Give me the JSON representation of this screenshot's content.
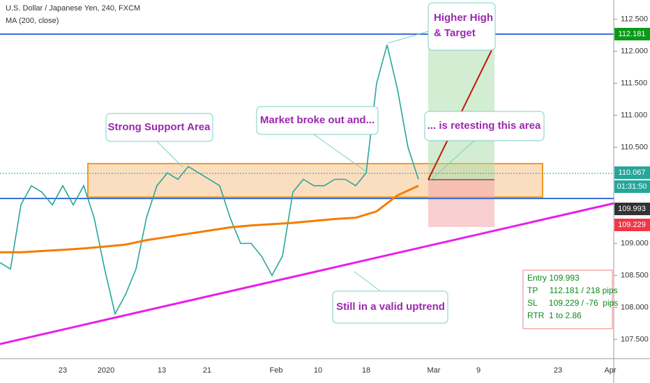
{
  "chart_data": {
    "type": "line",
    "title": "U.S. Dollar / Japanese Yen, 240, FXCM",
    "indicator": "MA (200, close)",
    "series": [
      {
        "name": "USDJPY",
        "color": "#26a69a",
        "values": [
          108.7,
          108.6,
          109.6,
          109.9,
          109.8,
          109.6,
          109.9,
          109.6,
          109.9,
          109.4,
          108.6,
          107.9,
          108.2,
          108.6,
          109.4,
          109.9,
          110.1,
          110.0,
          110.2,
          110.1,
          110.0,
          109.9,
          109.4,
          109.0,
          109.0,
          108.8,
          108.5,
          108.8,
          109.8,
          110.0,
          109.9,
          109.9,
          110.0,
          110.0,
          109.9,
          110.1,
          111.5,
          112.1,
          111.4,
          110.5,
          110.0
        ]
      },
      {
        "name": "MA",
        "color": "#f57c00",
        "values": [
          108.86,
          108.86,
          108.88,
          108.9,
          108.92,
          108.95,
          108.98,
          109.05,
          109.1,
          109.15,
          109.2,
          109.25,
          109.28,
          109.3,
          109.32,
          109.35,
          109.38,
          109.4,
          109.5,
          109.75,
          109.9
        ]
      }
    ],
    "ylim": [
      107.2,
      112.8
    ],
    "yticks": [
      {
        "value": 112.5,
        "label": "112.500"
      },
      {
        "value": 112,
        "label": "112.000"
      },
      {
        "value": 111.5,
        "label": "111.500"
      },
      {
        "value": 111,
        "label": "111.000"
      },
      {
        "value": 110.5,
        "label": "110.500"
      },
      {
        "value": 109,
        "label": "109.000"
      },
      {
        "value": 108.5,
        "label": "108.500"
      },
      {
        "value": 108,
        "label": "108.000"
      },
      {
        "value": 107.5,
        "label": "107.500"
      }
    ],
    "xticks": [
      "23",
      "2020",
      "13",
      "21",
      "Feb",
      "10",
      "18",
      "Mar",
      "9",
      "23",
      "Apr"
    ],
    "price_labels": [
      {
        "value": 112.181,
        "label": "112.181",
        "color": "#0a9a1a"
      },
      {
        "value": 110.067,
        "label": "110.067",
        "color": "#26a69a"
      },
      {
        "value": 109.993,
        "label": "109.993",
        "color": "#333333"
      },
      {
        "value": 109.229,
        "label": "109.229",
        "color": "#f23645"
      }
    ],
    "countdown": "01:31:50",
    "annotations": [
      "Strong Support Area",
      "Market broke out and...",
      "... is retesting this area",
      "Higher High",
      "& Target",
      "Still in a valid uptrend"
    ],
    "info": [
      "Entry 109.993",
      "TP     112.181 / 218 pips",
      "SL     109.229 / -76  pips",
      "RTR  1 to 2.86"
    ]
  }
}
